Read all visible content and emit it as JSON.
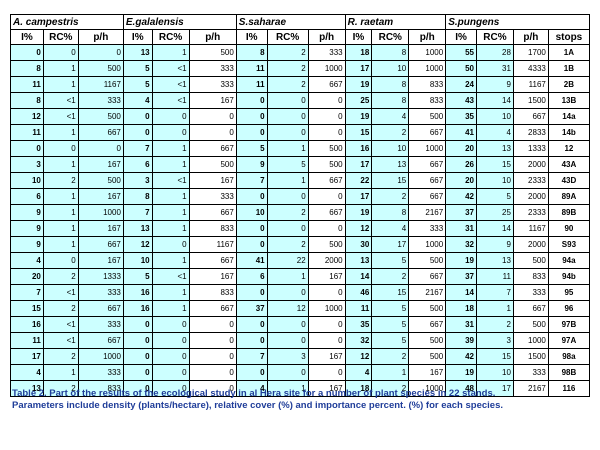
{
  "species": [
    "A. campestris",
    "E.galalensis",
    "S.saharae",
    "R. raetam",
    "S.pungens"
  ],
  "headers": [
    "I%",
    "RC%",
    "p/h",
    "I%",
    "RC%",
    "p/h",
    "I%",
    "RC%",
    "p/h",
    "I%",
    "RC%",
    "p/h",
    "I%",
    "RC%",
    "p/h",
    "stops"
  ],
  "rows": [
    [
      "0",
      "0",
      "0",
      "13",
      "1",
      "500",
      "8",
      "2",
      "333",
      "18",
      "8",
      "1000",
      "55",
      "28",
      "1700",
      "1A"
    ],
    [
      "8",
      "1",
      "500",
      "5",
      "<1",
      "333",
      "11",
      "2",
      "1000",
      "17",
      "10",
      "1000",
      "50",
      "31",
      "4333",
      "1B"
    ],
    [
      "11",
      "1",
      "1167",
      "5",
      "<1",
      "333",
      "11",
      "2",
      "667",
      "19",
      "8",
      "833",
      "24",
      "9",
      "1167",
      "2B"
    ],
    [
      "8",
      "<1",
      "333",
      "4",
      "<1",
      "167",
      "0",
      "0",
      "0",
      "25",
      "8",
      "833",
      "43",
      "14",
      "1500",
      "13B"
    ],
    [
      "12",
      "<1",
      "500",
      "0",
      "0",
      "0",
      "0",
      "0",
      "0",
      "19",
      "4",
      "500",
      "35",
      "10",
      "667",
      "14a"
    ],
    [
      "11",
      "1",
      "667",
      "0",
      "0",
      "0",
      "0",
      "0",
      "0",
      "15",
      "2",
      "667",
      "41",
      "4",
      "2833",
      "14b"
    ],
    [
      "0",
      "0",
      "0",
      "7",
      "1",
      "667",
      "5",
      "1",
      "500",
      "16",
      "10",
      "1000",
      "20",
      "13",
      "1333",
      "12"
    ],
    [
      "3",
      "1",
      "167",
      "6",
      "1",
      "500",
      "9",
      "5",
      "500",
      "17",
      "13",
      "667",
      "26",
      "15",
      "2000",
      "43A"
    ],
    [
      "10",
      "2",
      "500",
      "3",
      "<1",
      "167",
      "7",
      "1",
      "667",
      "22",
      "15",
      "667",
      "20",
      "10",
      "2333",
      "43D"
    ],
    [
      "6",
      "1",
      "167",
      "8",
      "1",
      "333",
      "0",
      "0",
      "0",
      "17",
      "2",
      "667",
      "42",
      "5",
      "2000",
      "89A"
    ],
    [
      "9",
      "1",
      "1000",
      "7",
      "1",
      "667",
      "10",
      "2",
      "667",
      "19",
      "8",
      "2167",
      "37",
      "25",
      "2333",
      "89B"
    ],
    [
      "9",
      "1",
      "167",
      "13",
      "1",
      "833",
      "0",
      "0",
      "0",
      "12",
      "4",
      "333",
      "31",
      "14",
      "1167",
      "90"
    ],
    [
      "9",
      "1",
      "667",
      "12",
      "0",
      "1167",
      "0",
      "2",
      "500",
      "30",
      "17",
      "1000",
      "32",
      "9",
      "2000",
      "S93"
    ],
    [
      "4",
      "0",
      "167",
      "10",
      "1",
      "667",
      "41",
      "22",
      "2000",
      "13",
      "5",
      "500",
      "19",
      "13",
      "500",
      "94a"
    ],
    [
      "20",
      "2",
      "1333",
      "5",
      "<1",
      "167",
      "6",
      "1",
      "167",
      "14",
      "2",
      "667",
      "37",
      "11",
      "833",
      "94b"
    ],
    [
      "7",
      "<1",
      "333",
      "16",
      "1",
      "833",
      "0",
      "0",
      "0",
      "46",
      "15",
      "2167",
      "14",
      "7",
      "333",
      "95"
    ],
    [
      "15",
      "2",
      "667",
      "16",
      "1",
      "667",
      "37",
      "12",
      "1000",
      "11",
      "5",
      "500",
      "18",
      "1",
      "667",
      "96"
    ],
    [
      "16",
      "<1",
      "333",
      "0",
      "0",
      "0",
      "0",
      "0",
      "0",
      "35",
      "5",
      "667",
      "31",
      "2",
      "500",
      "97B"
    ],
    [
      "11",
      "<1",
      "667",
      "0",
      "0",
      "0",
      "0",
      "0",
      "0",
      "32",
      "5",
      "500",
      "39",
      "3",
      "1000",
      "97A"
    ],
    [
      "17",
      "2",
      "1000",
      "0",
      "0",
      "0",
      "7",
      "3",
      "167",
      "12",
      "2",
      "500",
      "42",
      "15",
      "1500",
      "98a"
    ],
    [
      "4",
      "1",
      "333",
      "0",
      "0",
      "0",
      "0",
      "0",
      "0",
      "4",
      "1",
      "167",
      "19",
      "10",
      "333",
      "98B"
    ],
    [
      "13",
      "2",
      "833",
      "0",
      "0",
      "0",
      "4",
      "1",
      "167",
      "18",
      "2",
      "1000",
      "48",
      "17",
      "2167",
      "116"
    ]
  ],
  "caption": {
    "line1": "Table 2. Part of the results of the ecological study in al Hera site for a number of plant species in 22 stands.",
    "line2": "Parameters include density (plants/hectare), relative cover (%) and importance percent. (%) for each species."
  },
  "colors": {
    "cell_fill": "#ccffff",
    "caption": "#1f3d99"
  }
}
